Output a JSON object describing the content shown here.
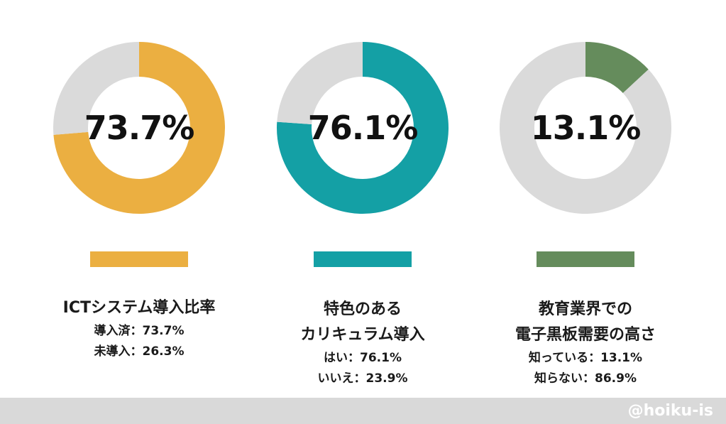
{
  "chart_data": [
    {
      "type": "pie",
      "variant": "donut",
      "center_label": "73.7%",
      "title_lines": [
        "ICTシステム導入比率"
      ],
      "slices": [
        {
          "label": "導入済",
          "value": 73.7,
          "color": "#ebaf41"
        },
        {
          "label": "未導入",
          "value": 26.3,
          "color": "#dadada"
        }
      ],
      "stat_lines": [
        "導入済：73.7%",
        "未導入：26.3%"
      ],
      "legend_color": "#ebaf41"
    },
    {
      "type": "pie",
      "variant": "donut",
      "center_label": "76.1%",
      "title_lines": [
        "特色のある",
        "カリキュラム導入"
      ],
      "slices": [
        {
          "label": "はい",
          "value": 76.1,
          "color": "#14a0a5"
        },
        {
          "label": "いいえ",
          "value": 23.9,
          "color": "#dadada"
        }
      ],
      "stat_lines": [
        "はい：76.1%",
        "いいえ：23.9%"
      ],
      "legend_color": "#14a0a5"
    },
    {
      "type": "pie",
      "variant": "donut",
      "center_label": "13.1%",
      "title_lines": [
        "教育業界での",
        "電子黒板需要の高さ"
      ],
      "slices": [
        {
          "label": "知っている",
          "value": 13.1,
          "color": "#658c5c"
        },
        {
          "label": "知らない",
          "value": 86.9,
          "color": "#dadada"
        }
      ],
      "stat_lines": [
        "知っている：13.1%",
        "知らない：86.9%"
      ],
      "legend_color": "#658c5c"
    }
  ],
  "footer": {
    "watermark": "@hoiku-is",
    "bar_color": "#d9d9d9"
  }
}
